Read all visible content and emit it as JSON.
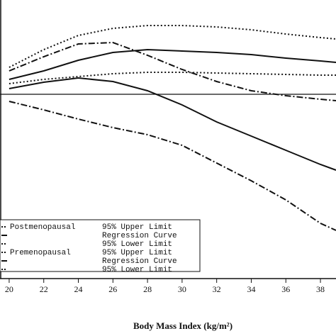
{
  "chart_data": {
    "type": "line",
    "x_label": "Body Mass Index (kg/m²)",
    "x": [
      20,
      22,
      24,
      26,
      28,
      30,
      32,
      34,
      36,
      38,
      38.9
    ],
    "xlim": [
      19.47,
      38.9
    ],
    "xticks": [
      20,
      22,
      24,
      26,
      28,
      30,
      32,
      34,
      36,
      38
    ],
    "ylim": [
      0,
      393
    ],
    "reference_line": 260,
    "legend_groups": [
      "Postmenopausal",
      "Premenopausal"
    ],
    "series": [
      {
        "name": "95% Upper Limit",
        "color": "#111111",
        "dash": "2,3",
        "values": [
          298,
          323,
          343,
          353,
          357,
          357,
          355,
          351,
          345,
          340,
          338
        ]
      },
      {
        "name": "Regression Curve",
        "color": "#111111",
        "dash": "none",
        "values": [
          281,
          293,
          308,
          319,
          323,
          321,
          319,
          316,
          311,
          307,
          305
        ]
      },
      {
        "name": "95% Lower Limit",
        "color": "#111111",
        "dash": "9,3,2,3",
        "values": [
          293,
          313,
          331,
          333,
          315,
          295,
          278,
          265,
          258,
          253,
          251
        ]
      },
      {
        "name": "95% Upper Limit",
        "color": "#111111",
        "dash": "2,3",
        "values": [
          275,
          281,
          285,
          289,
          291,
          291,
          290,
          289,
          288,
          287,
          287
        ]
      },
      {
        "name": "Regression Curve",
        "color": "#111111",
        "dash": "none",
        "values": [
          268,
          277,
          283,
          278,
          265,
          245,
          221,
          201,
          181,
          161,
          153
        ]
      },
      {
        "name": "95% Lower Limit",
        "color": "#111111",
        "dash": "9,3,2,3",
        "values": [
          250,
          238,
          225,
          213,
          203,
          188,
          163,
          138,
          111,
          78,
          68
        ]
      }
    ]
  }
}
